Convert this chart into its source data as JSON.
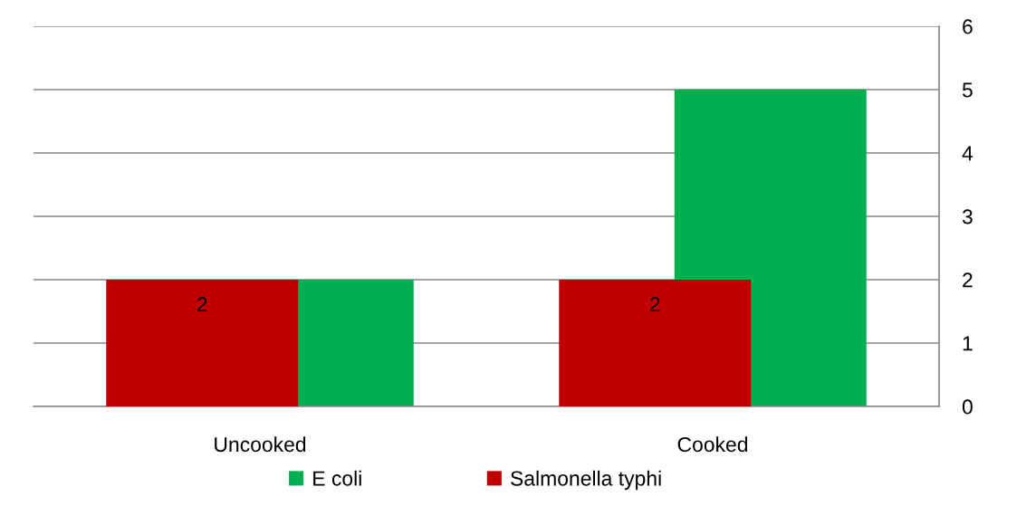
{
  "chart_data": {
    "type": "bar",
    "categories": [
      "Uncooked",
      "Cooked"
    ],
    "series": [
      {
        "name": "E coli",
        "color": "#00b050",
        "values": [
          2,
          5
        ]
      },
      {
        "name": "Salmonella typhi",
        "color": "#c00000",
        "values": [
          2,
          2
        ],
        "value_labels": [
          "2",
          "2"
        ]
      }
    ],
    "ylim": [
      0,
      6
    ],
    "yticks": [
      0,
      1,
      2,
      3,
      4,
      5,
      6
    ],
    "grid": "y",
    "legend": "bottom"
  }
}
